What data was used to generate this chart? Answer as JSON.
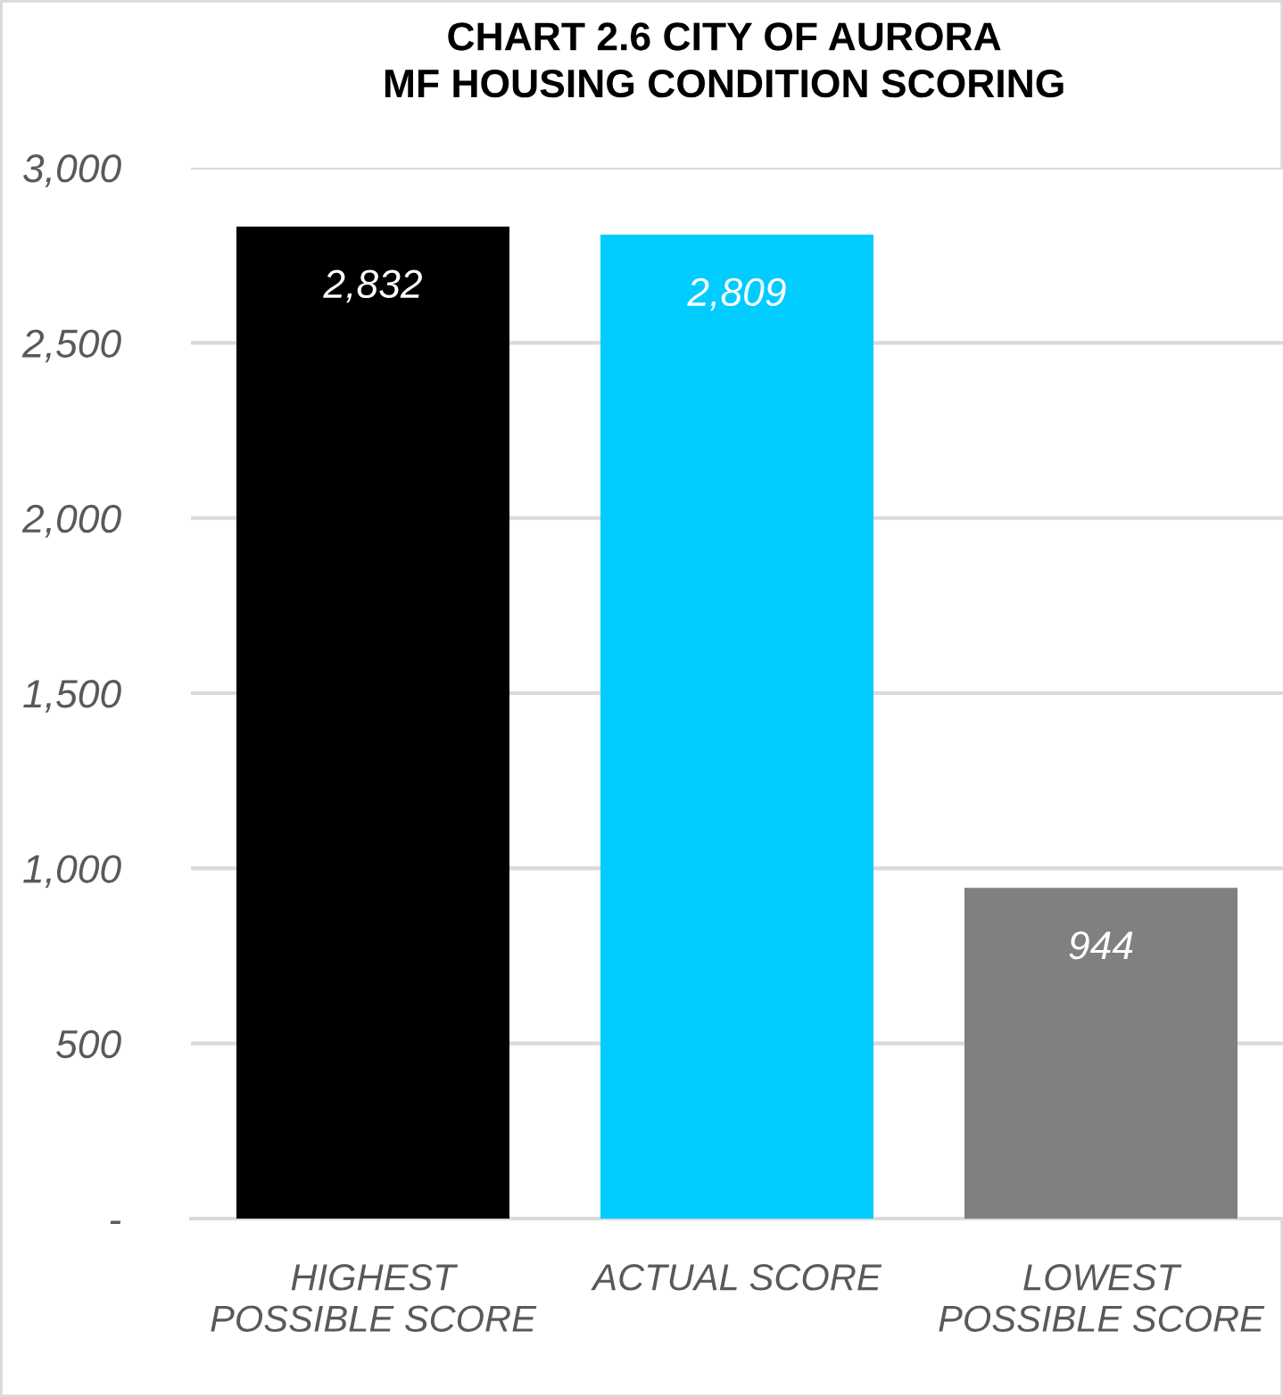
{
  "chart_data": {
    "type": "bar",
    "title": "CHART 2.6 CITY OF AURORA\nMF HOUSING CONDITION SCORING",
    "categories": [
      "HIGHEST\nPOSSIBLE SCORE",
      "ACTUAL SCORE",
      "LOWEST\nPOSSIBLE SCORE"
    ],
    "values": [
      2832,
      2809,
      944
    ],
    "value_labels": [
      "2,832",
      "2,809",
      "944"
    ],
    "colors": [
      "#000000",
      "#00ccff",
      "#808080"
    ],
    "ylim": [
      0,
      3000
    ],
    "yticks": [
      {
        "value": 0,
        "label": "-"
      },
      500,
      {
        "value": 1000,
        "label": "1,000"
      },
      {
        "value": 1500,
        "label": "1,500"
      },
      {
        "value": 2000,
        "label": "2,000"
      },
      {
        "value": 2500,
        "label": "2,500"
      },
      {
        "value": 3000,
        "label": "3,000"
      }
    ],
    "grid": "y"
  }
}
